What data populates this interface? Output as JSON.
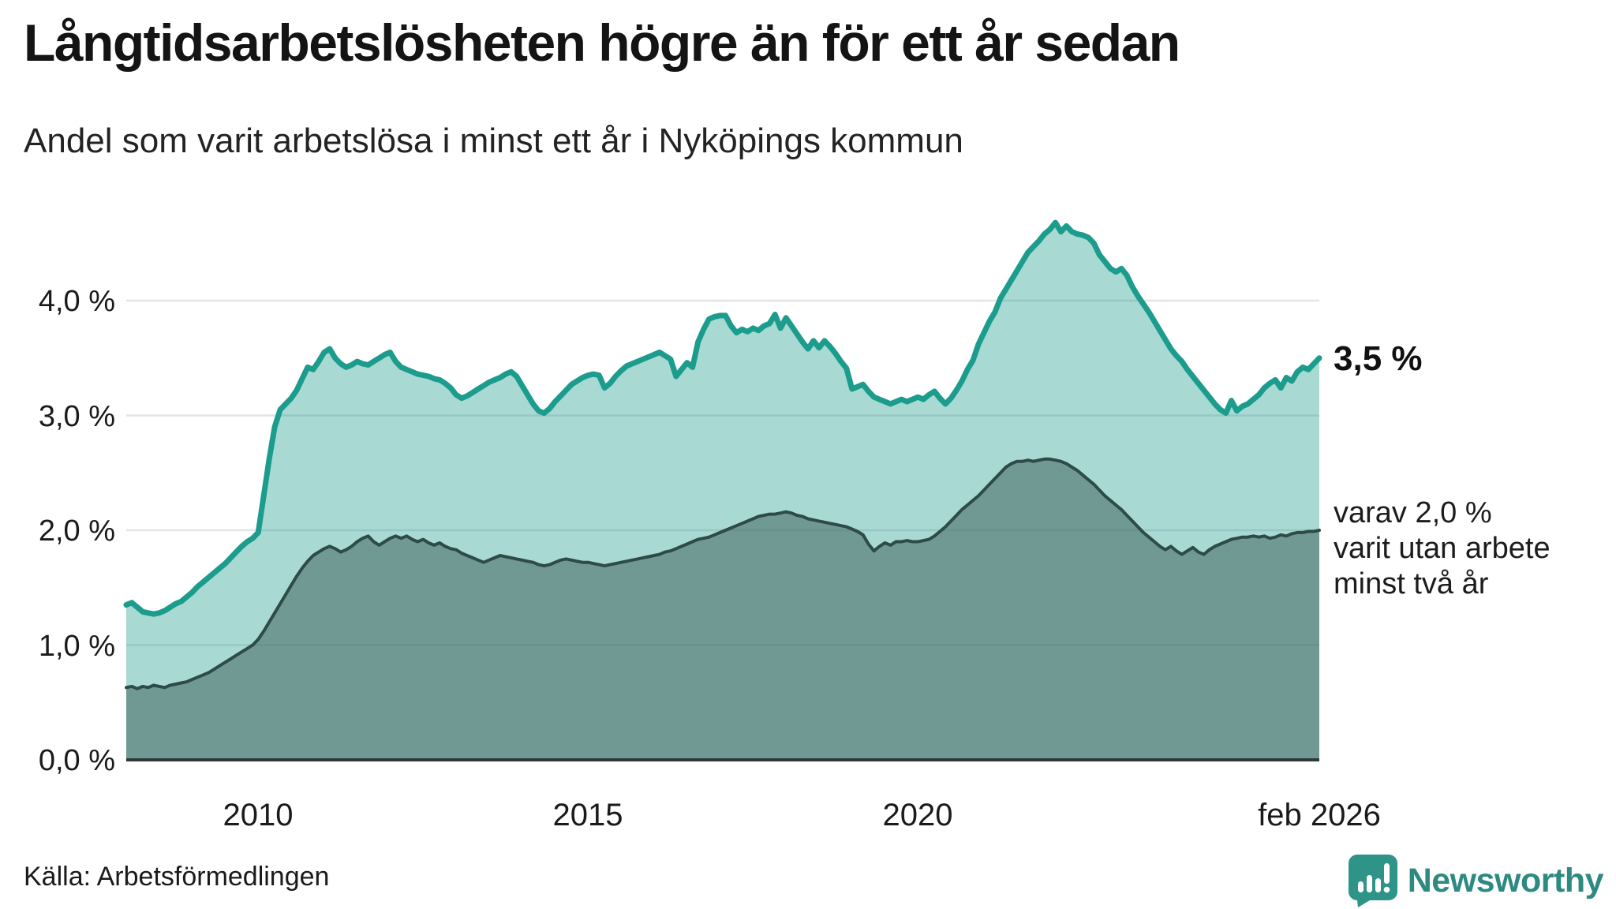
{
  "header": {
    "title": "Långtidsarbetslösheten högre än för ett år sedan",
    "subtitle": "Andel som varit arbetslösa i minst ett år i Nyköpings kommun"
  },
  "annotations": {
    "end_value_primary": "3,5 %",
    "secondary_lines": [
      "varav 2,0 %",
      "varit utan arbete",
      "minst två år"
    ]
  },
  "source": {
    "label": "Källa: Arbetsförmedlingen"
  },
  "branding": {
    "name": "Newsworthy",
    "logo_icon": "bar-chart-speech-bubble-icon",
    "text_color": "#2D8A80",
    "icon_color": "#2F9488"
  },
  "chart_data": {
    "type": "area",
    "title": "Långtidsarbetslösheten högre än för ett år sedan",
    "subtitle": "Andel som varit arbetslösa i minst ett år i Nyköpings kommun",
    "x_unit": "month",
    "x_start": "2008-01",
    "x_end": "2026-02",
    "ylim": [
      0,
      4.8
    ],
    "grid": true,
    "legend_position": "none",
    "y_ticks": [
      {
        "value": 0,
        "label": "0,0 %"
      },
      {
        "value": 1,
        "label": "1,0 %"
      },
      {
        "value": 2,
        "label": "2,0 %"
      },
      {
        "value": 3,
        "label": "3,0 %"
      },
      {
        "value": 4,
        "label": "4,0 %"
      }
    ],
    "x_ticks": [
      {
        "month_index": 24,
        "label": "2010"
      },
      {
        "month_index": 84,
        "label": "2015"
      },
      {
        "month_index": 144,
        "label": "2020"
      },
      {
        "month_index": 217,
        "label": "feb 2026"
      }
    ],
    "style": {
      "grid_color": "#E4E4E8",
      "baseline_color": "#2F3A38",
      "text_color": "#1A1A1A"
    },
    "series": [
      {
        "name": "Andel arbetslösa minst ett år",
        "end_value_label": "3,5 %",
        "color": "#1B9C8C",
        "fill": "rgba(27,156,140,0.38)",
        "line_width": 7,
        "values": [
          1.35,
          1.37,
          1.33,
          1.29,
          1.28,
          1.27,
          1.28,
          1.3,
          1.33,
          1.36,
          1.38,
          1.42,
          1.46,
          1.51,
          1.55,
          1.59,
          1.63,
          1.67,
          1.71,
          1.76,
          1.81,
          1.86,
          1.9,
          1.93,
          1.98,
          2.3,
          2.62,
          2.9,
          3.05,
          3.1,
          3.15,
          3.22,
          3.32,
          3.42,
          3.4,
          3.47,
          3.55,
          3.58,
          3.5,
          3.45,
          3.42,
          3.44,
          3.47,
          3.45,
          3.44,
          3.47,
          3.5,
          3.53,
          3.55,
          3.47,
          3.42,
          3.4,
          3.38,
          3.36,
          3.35,
          3.34,
          3.32,
          3.31,
          3.28,
          3.24,
          3.18,
          3.15,
          3.17,
          3.2,
          3.23,
          3.26,
          3.29,
          3.31,
          3.33,
          3.36,
          3.38,
          3.34,
          3.26,
          3.18,
          3.1,
          3.04,
          3.02,
          3.06,
          3.12,
          3.17,
          3.22,
          3.27,
          3.3,
          3.33,
          3.35,
          3.36,
          3.35,
          3.24,
          3.28,
          3.34,
          3.39,
          3.43,
          3.45,
          3.47,
          3.49,
          3.51,
          3.53,
          3.55,
          3.52,
          3.49,
          3.34,
          3.4,
          3.46,
          3.42,
          3.64,
          3.75,
          3.84,
          3.86,
          3.87,
          3.87,
          3.78,
          3.72,
          3.75,
          3.73,
          3.76,
          3.74,
          3.78,
          3.8,
          3.88,
          3.76,
          3.85,
          3.78,
          3.71,
          3.64,
          3.58,
          3.65,
          3.59,
          3.65,
          3.6,
          3.54,
          3.47,
          3.41,
          3.23,
          3.25,
          3.27,
          3.21,
          3.16,
          3.14,
          3.12,
          3.1,
          3.12,
          3.14,
          3.12,
          3.14,
          3.16,
          3.14,
          3.18,
          3.21,
          3.15,
          3.1,
          3.15,
          3.22,
          3.3,
          3.4,
          3.48,
          3.62,
          3.72,
          3.82,
          3.9,
          4.02,
          4.1,
          4.18,
          4.26,
          4.34,
          4.42,
          4.47,
          4.52,
          4.58,
          4.62,
          4.68,
          4.6,
          4.65,
          4.6,
          4.58,
          4.57,
          4.55,
          4.5,
          4.4,
          4.34,
          4.28,
          4.25,
          4.28,
          4.22,
          4.12,
          4.04,
          3.97,
          3.9,
          3.82,
          3.74,
          3.66,
          3.58,
          3.52,
          3.47,
          3.4,
          3.34,
          3.28,
          3.22,
          3.16,
          3.1,
          3.05,
          3.02,
          3.13,
          3.04,
          3.08,
          3.1,
          3.14,
          3.18,
          3.24,
          3.28,
          3.31,
          3.24,
          3.33,
          3.3,
          3.38,
          3.42,
          3.4,
          3.45,
          3.5
        ]
      },
      {
        "name": "Andel arbetslösa minst två år",
        "end_value_label": "2,0 %",
        "color": "#2E4B47",
        "fill": "rgba(46,75,71,0.45)",
        "line_width": 4,
        "values": [
          0.63,
          0.64,
          0.62,
          0.64,
          0.63,
          0.65,
          0.64,
          0.63,
          0.65,
          0.66,
          0.67,
          0.68,
          0.7,
          0.72,
          0.74,
          0.76,
          0.79,
          0.82,
          0.85,
          0.88,
          0.91,
          0.94,
          0.97,
          1.0,
          1.05,
          1.12,
          1.2,
          1.28,
          1.36,
          1.44,
          1.52,
          1.6,
          1.67,
          1.73,
          1.78,
          1.81,
          1.84,
          1.86,
          1.84,
          1.81,
          1.83,
          1.86,
          1.9,
          1.93,
          1.95,
          1.9,
          1.87,
          1.9,
          1.93,
          1.95,
          1.93,
          1.95,
          1.92,
          1.9,
          1.92,
          1.89,
          1.87,
          1.89,
          1.86,
          1.84,
          1.83,
          1.8,
          1.78,
          1.76,
          1.74,
          1.72,
          1.74,
          1.76,
          1.78,
          1.77,
          1.76,
          1.75,
          1.74,
          1.73,
          1.72,
          1.7,
          1.69,
          1.7,
          1.72,
          1.74,
          1.75,
          1.74,
          1.73,
          1.72,
          1.72,
          1.71,
          1.7,
          1.69,
          1.7,
          1.71,
          1.72,
          1.73,
          1.74,
          1.75,
          1.76,
          1.77,
          1.78,
          1.79,
          1.81,
          1.82,
          1.84,
          1.86,
          1.88,
          1.9,
          1.92,
          1.93,
          1.94,
          1.96,
          1.98,
          2.0,
          2.02,
          2.04,
          2.06,
          2.08,
          2.1,
          2.12,
          2.13,
          2.14,
          2.14,
          2.15,
          2.16,
          2.15,
          2.13,
          2.12,
          2.1,
          2.09,
          2.08,
          2.07,
          2.06,
          2.05,
          2.04,
          2.03,
          2.01,
          1.99,
          1.96,
          1.88,
          1.82,
          1.86,
          1.89,
          1.87,
          1.9,
          1.9,
          1.91,
          1.9,
          1.9,
          1.91,
          1.92,
          1.95,
          1.99,
          2.03,
          2.08,
          2.13,
          2.18,
          2.22,
          2.26,
          2.3,
          2.35,
          2.4,
          2.45,
          2.5,
          2.55,
          2.58,
          2.6,
          2.6,
          2.61,
          2.6,
          2.61,
          2.62,
          2.62,
          2.61,
          2.6,
          2.58,
          2.55,
          2.52,
          2.48,
          2.44,
          2.4,
          2.35,
          2.3,
          2.26,
          2.22,
          2.18,
          2.13,
          2.08,
          2.03,
          1.98,
          1.94,
          1.9,
          1.86,
          1.83,
          1.86,
          1.82,
          1.79,
          1.82,
          1.85,
          1.81,
          1.79,
          1.83,
          1.86,
          1.88,
          1.9,
          1.92,
          1.93,
          1.94,
          1.94,
          1.95,
          1.94,
          1.95,
          1.93,
          1.94,
          1.96,
          1.95,
          1.97,
          1.98,
          1.98,
          1.99,
          1.99,
          2.0
        ]
      }
    ]
  }
}
